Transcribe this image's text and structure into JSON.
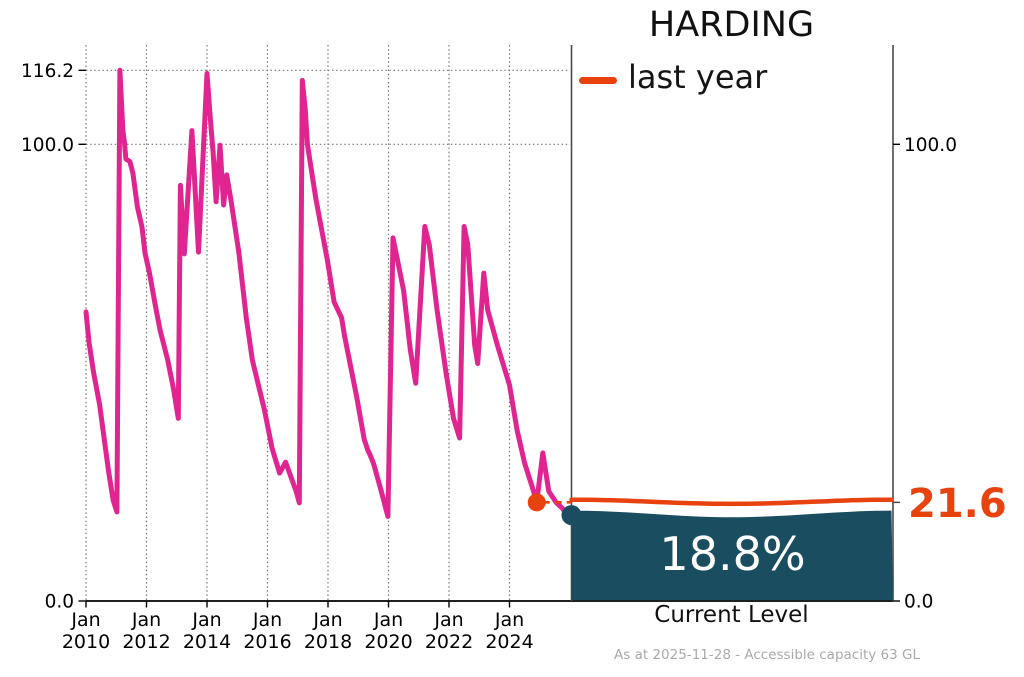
{
  "title": "HARDING",
  "legend": {
    "label": "last year",
    "swatch_color": "#e8430f"
  },
  "panel": {
    "percent_label": "18.8%",
    "caption": "Current Level",
    "last_year_label": "21.6"
  },
  "footnote": "As at 2025-11-28 - Accessible capacity 63 GL",
  "colors": {
    "series_pink": "#e02590",
    "last_year_orange": "#e8430f",
    "fill_teal": "#1b4d61",
    "grid_gray": "#777777",
    "spine_dark": "#4a4a4a",
    "axis_black": "#000000",
    "footnote_gray": "#a9a9a9",
    "percent_text": "#ffffff"
  },
  "axes": {
    "left_ticks": [
      {
        "label": "116.2",
        "value": 116.2
      },
      {
        "label": "100.0",
        "value": 100.0
      },
      {
        "label": "0.0",
        "value": 0.0
      }
    ],
    "right_ticks": [
      {
        "label": "100.0",
        "value": 100.0
      },
      {
        "label": "0.0",
        "value": 0.0
      }
    ],
    "x_ticks": [
      {
        "month": "Jan",
        "year_label": "2010",
        "year": 2010
      },
      {
        "month": "Jan",
        "year_label": "2012",
        "year": 2012
      },
      {
        "month": "Jan",
        "year_label": "2014",
        "year": 2014
      },
      {
        "month": "Jan",
        "year_label": "2016",
        "year": 2016
      },
      {
        "month": "Jan",
        "year_label": "2018",
        "year": 2018
      },
      {
        "month": "Jan",
        "year_label": "2020",
        "year": 2020
      },
      {
        "month": "Jan",
        "year_label": "2022",
        "year": 2022
      },
      {
        "month": "Jan",
        "year_label": "2024",
        "year": 2024
      }
    ]
  },
  "chart_data": {
    "type": "line",
    "title": "HARDING",
    "xlabel": "",
    "ylabel": "",
    "xlim": [
      2010,
      2026
    ],
    "ylim": [
      0,
      121.7
    ],
    "grid": true,
    "legend_position": "upper left of right panel",
    "series": [
      {
        "name": "storage level history (% full)",
        "color": "#e02590",
        "points": [
          [
            2010.0,
            63.3
          ],
          [
            2010.1,
            56.7
          ],
          [
            2010.25,
            50.0
          ],
          [
            2010.45,
            43.0
          ],
          [
            2010.6,
            35.7
          ],
          [
            2010.75,
            28.2
          ],
          [
            2010.9,
            22.0
          ],
          [
            2011.02,
            19.5
          ],
          [
            2011.12,
            116.2
          ],
          [
            2011.22,
            103.0
          ],
          [
            2011.27,
            100.5
          ],
          [
            2011.32,
            96.8
          ],
          [
            2011.45,
            96.2
          ],
          [
            2011.55,
            93.7
          ],
          [
            2011.7,
            86.3
          ],
          [
            2011.85,
            81.9
          ],
          [
            2011.95,
            76.2
          ],
          [
            2012.1,
            71.8
          ],
          [
            2012.3,
            64.4
          ],
          [
            2012.45,
            59.3
          ],
          [
            2012.7,
            52.8
          ],
          [
            2012.9,
            46.2
          ],
          [
            2013.05,
            40.0
          ],
          [
            2013.12,
            91.0
          ],
          [
            2013.25,
            76.0
          ],
          [
            2013.5,
            103.0
          ],
          [
            2013.72,
            76.4
          ],
          [
            2014.0,
            115.5
          ],
          [
            2014.13,
            104.0
          ],
          [
            2014.2,
            98.3
          ],
          [
            2014.3,
            87.4
          ],
          [
            2014.43,
            99.8
          ],
          [
            2014.55,
            86.7
          ],
          [
            2014.65,
            93.3
          ],
          [
            2014.8,
            87.4
          ],
          [
            2015.05,
            76.4
          ],
          [
            2015.3,
            62.0
          ],
          [
            2015.5,
            52.7
          ],
          [
            2015.9,
            41.8
          ],
          [
            2016.15,
            33.5
          ],
          [
            2016.4,
            28.0
          ],
          [
            2016.6,
            30.4
          ],
          [
            2016.95,
            24.0
          ],
          [
            2017.05,
            21.5
          ],
          [
            2017.15,
            114.0
          ],
          [
            2017.25,
            107.5
          ],
          [
            2017.32,
            100.0
          ],
          [
            2017.6,
            88.0
          ],
          [
            2017.98,
            74.6
          ],
          [
            2018.2,
            65.5
          ],
          [
            2018.45,
            62.0
          ],
          [
            2018.55,
            58.0
          ],
          [
            2018.95,
            44.7
          ],
          [
            2019.2,
            35.3
          ],
          [
            2019.32,
            33.0
          ],
          [
            2019.42,
            31.5
          ],
          [
            2019.52,
            29.8
          ],
          [
            2019.78,
            23.6
          ],
          [
            2019.98,
            18.5
          ],
          [
            2020.15,
            79.5
          ],
          [
            2020.5,
            68.0
          ],
          [
            2020.72,
            55.0
          ],
          [
            2020.9,
            47.7
          ],
          [
            2021.2,
            82.0
          ],
          [
            2021.35,
            78.0
          ],
          [
            2021.6,
            64.0
          ],
          [
            2021.9,
            50.0
          ],
          [
            2022.15,
            40.0
          ],
          [
            2022.35,
            35.7
          ],
          [
            2022.5,
            82.0
          ],
          [
            2022.62,
            78.0
          ],
          [
            2022.85,
            56.0
          ],
          [
            2022.95,
            52.0
          ],
          [
            2023.15,
            71.8
          ],
          [
            2023.28,
            63.7
          ],
          [
            2023.6,
            56.0
          ],
          [
            2024.0,
            47.3
          ],
          [
            2024.25,
            37.4
          ],
          [
            2024.5,
            30.2
          ],
          [
            2024.75,
            25.0
          ],
          [
            2024.9,
            21.6
          ],
          [
            2025.1,
            32.4
          ],
          [
            2025.3,
            24.0
          ],
          [
            2025.55,
            21.5
          ],
          [
            2025.75,
            20.3
          ],
          [
            2025.9,
            18.8
          ]
        ]
      }
    ],
    "last_year_marker": {
      "x": 2024.9,
      "value": 21.6
    },
    "current_level": {
      "as_at": "2025-11-28",
      "percent": 18.8
    },
    "accessible_capacity_gl": 63
  }
}
